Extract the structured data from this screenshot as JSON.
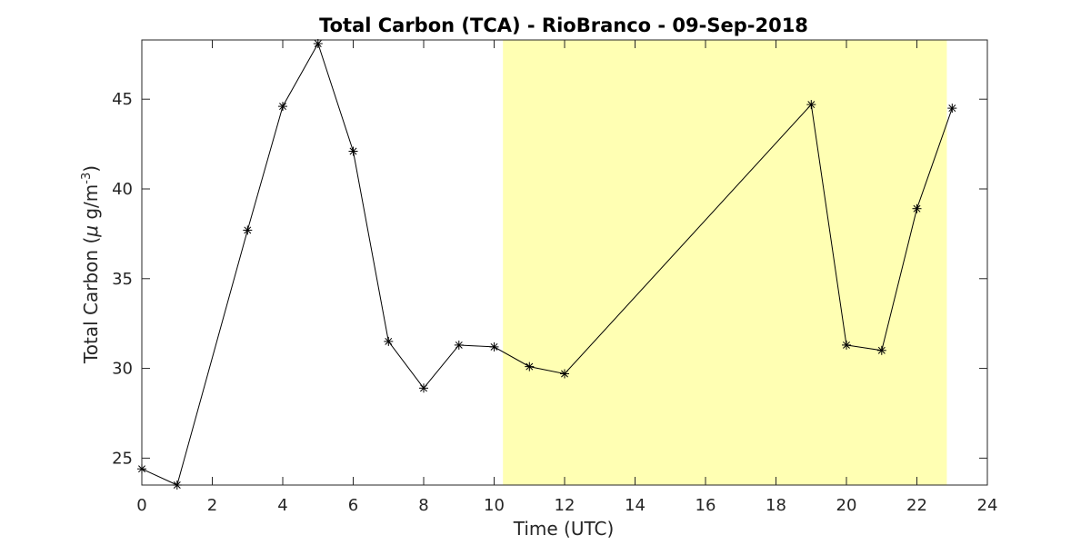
{
  "chart_data": {
    "type": "line",
    "title": "Total Carbon (TCA) - RioBranco - 09-Sep-2018",
    "xlabel": "Time (UTC)",
    "ylabel_main": "Total Carbon (",
    "ylabel_mu": "μ",
    "ylabel_unit": " g/m",
    "ylabel_sup": "-3",
    "ylabel_close": ")",
    "xlim": [
      0,
      24
    ],
    "ylim": [
      23.5,
      48.3
    ],
    "xticks": [
      0,
      2,
      4,
      6,
      8,
      10,
      12,
      14,
      16,
      18,
      20,
      22,
      24
    ],
    "yticks": [
      25,
      30,
      35,
      40,
      45
    ],
    "xtick_labels": [
      "0",
      "2",
      "4",
      "6",
      "8",
      "10",
      "12",
      "14",
      "16",
      "18",
      "20",
      "22",
      "24"
    ],
    "ytick_labels": [
      "25",
      "30",
      "35",
      "40",
      "45"
    ],
    "shaded_region": {
      "x_start": 10.25,
      "x_end": 22.85,
      "color": "#ffffb3"
    },
    "grid": false,
    "marker": "asterisk",
    "line_color": "#000000",
    "series": [
      {
        "x": [
          0,
          1,
          3,
          4,
          5,
          6,
          7,
          8,
          9,
          10,
          11,
          12,
          19,
          20,
          21,
          22,
          23
        ],
        "values": [
          24.4,
          23.5,
          37.7,
          44.6,
          48.1,
          42.1,
          31.5,
          28.9,
          31.3,
          31.2,
          30.1,
          29.7,
          44.7,
          31.3,
          31.0,
          38.9,
          44.5
        ]
      }
    ]
  }
}
